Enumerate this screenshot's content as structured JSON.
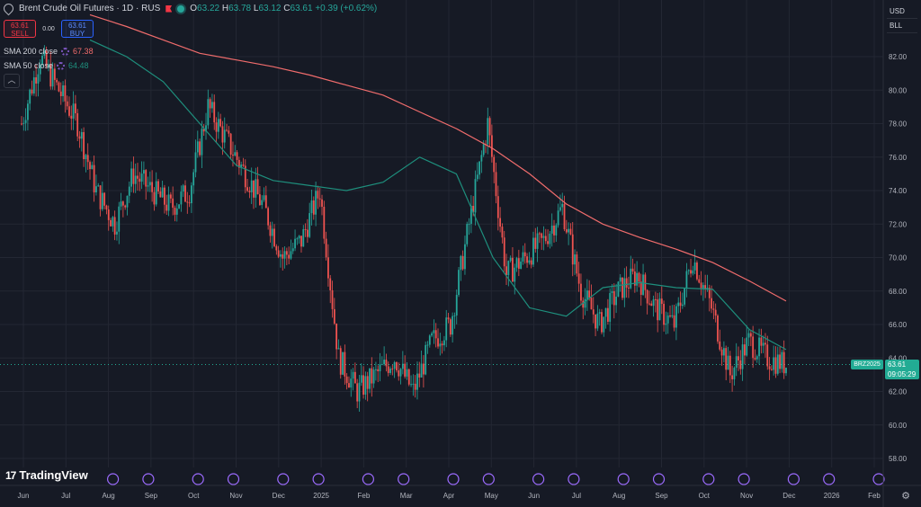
{
  "header": {
    "title": "Brent Crude Oil Futures · 1D · RUS",
    "ohlc": {
      "o_label": "O",
      "o": "63.22",
      "h_label": "H",
      "h": "63.78",
      "l_label": "L",
      "l": "63.12",
      "c_label": "C",
      "c": "63.61",
      "change": "+0.39 (+0.62%)"
    }
  },
  "trade": {
    "sell_price": "63.61",
    "sell_label": "SELL",
    "spread": "0.00",
    "buy_price": "63.61",
    "buy_label": "BUY"
  },
  "indicators": [
    {
      "label": "SMA 200 close",
      "value": "67.38",
      "color": "#f06c6c"
    },
    {
      "label": "SMA 50 close",
      "value": "64.48",
      "color": "#1e8f7d"
    }
  ],
  "currency": {
    "currency": "USD",
    "unit": "BLL"
  },
  "price_scale": [
    "82.00",
    "80.00",
    "78.00",
    "76.00",
    "74.00",
    "72.00",
    "70.00",
    "68.00",
    "66.00",
    "64.00",
    "62.00",
    "60.00",
    "58.00"
  ],
  "last_price": {
    "symbol": "BRZ2025",
    "price": "63.61",
    "countdown": "09:05:29"
  },
  "time_axis": [
    "Jun",
    "Jul",
    "Aug",
    "Sep",
    "Oct",
    "Nov",
    "Dec",
    "2025",
    "Feb",
    "Mar",
    "Apr",
    "May",
    "Jun",
    "Jul",
    "Aug",
    "Sep",
    "Oct",
    "Nov",
    "Dec",
    "2026",
    "Feb"
  ],
  "logo": {
    "text": "TradingView"
  },
  "colors": {
    "up": "#26a69a",
    "down": "#ef5350",
    "sma200": "#f06c6c",
    "sma50": "#1e8f7d",
    "background": "#161a25",
    "grid": "#232733"
  },
  "chart_data": {
    "type": "candlestick",
    "title": "Brent Crude Oil Futures · 1D · RUS",
    "ylim": [
      57,
      85
    ],
    "grid": true,
    "series": [
      {
        "name": "SMA 200 close",
        "values": [
          84.5,
          83.8,
          83.0,
          82.2,
          81.8,
          81.4,
          80.9,
          80.3,
          79.7,
          78.7,
          77.7,
          76.5,
          75.0,
          73.2,
          72.0,
          71.2,
          70.5,
          69.7,
          68.6,
          67.4
        ]
      },
      {
        "name": "SMA 50 close",
        "values": [
          83.0,
          82.0,
          80.5,
          78.0,
          75.5,
          74.6,
          74.3,
          74.0,
          74.5,
          76.0,
          75.0,
          70.0,
          67.0,
          66.5,
          68.2,
          68.5,
          68.2,
          68.1,
          65.7,
          64.5
        ]
      },
      {
        "name": "closes",
        "values": [
          78,
          82,
          80,
          78,
          74,
          72,
          75,
          74,
          73,
          74,
          79,
          77,
          75,
          73,
          70,
          71,
          74,
          64,
          62,
          63,
          64,
          62,
          65,
          66,
          72,
          78,
          69,
          70,
          71,
          73,
          68,
          66,
          68,
          69,
          67,
          66,
          70,
          67,
          63,
          65,
          64,
          63.6
        ]
      }
    ]
  }
}
